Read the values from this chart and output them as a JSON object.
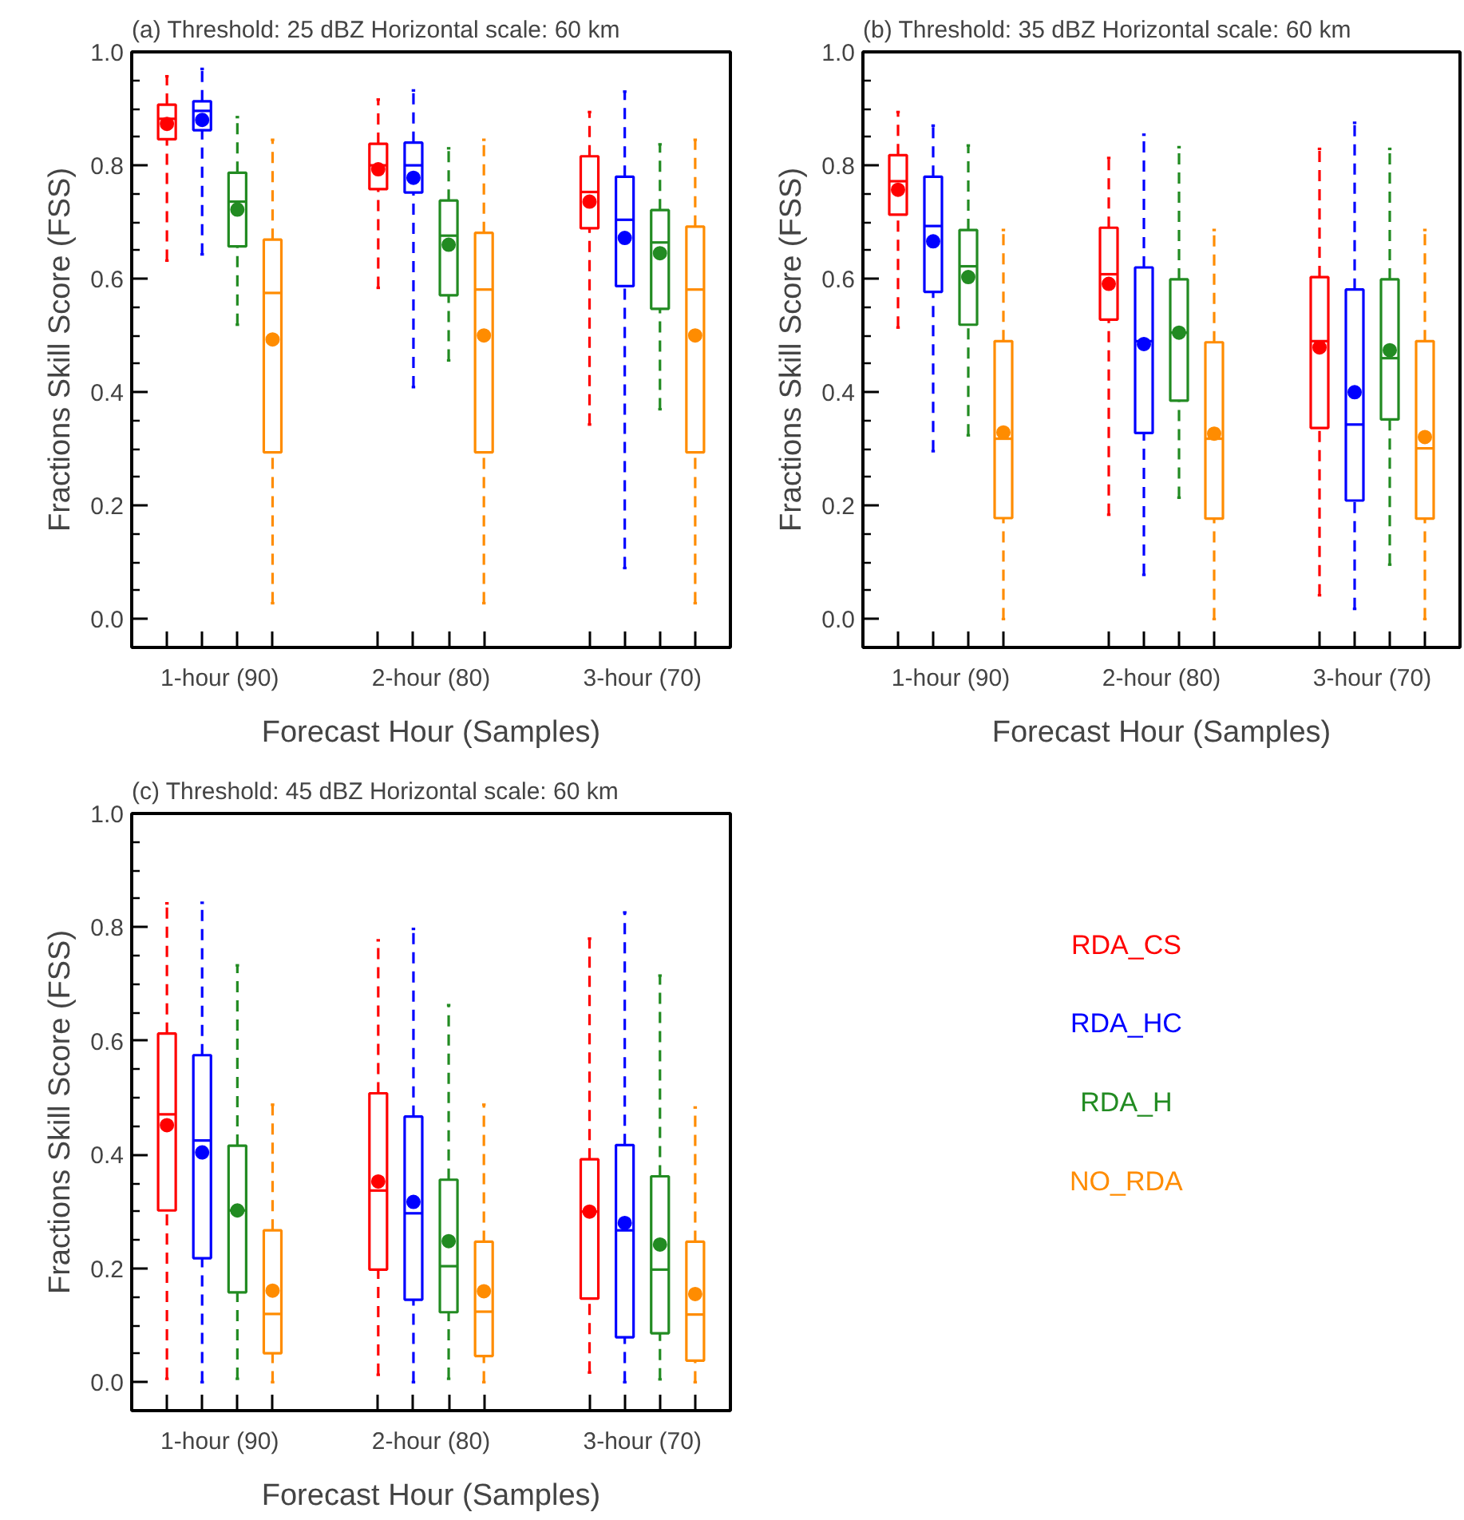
{
  "chart_data": [
    {
      "type": "box",
      "title": "(a) Threshold: 25 dBZ   Horizontal scale: 60 km",
      "xlabel": "Forecast Hour (Samples)",
      "ylabel": "Fractions Skill Score (FSS)",
      "categories": [
        "1-hour (90)",
        "2-hour (80)",
        "3-hour (70)"
      ],
      "ylim": [
        -0.05,
        1.0
      ],
      "yticks": [
        {
          "value": 0,
          "label": "0.0"
        },
        {
          "value": 0.05,
          "label": null
        },
        {
          "value": 0.1,
          "label": null
        },
        {
          "value": 0.15,
          "label": null
        },
        0.2,
        {
          "value": 0.25,
          "label": null
        },
        {
          "value": 0.3,
          "label": null
        },
        {
          "value": 0.35,
          "label": null
        },
        0.4,
        {
          "value": 0.45,
          "label": null
        },
        {
          "value": 0.5,
          "label": null
        },
        {
          "value": 0.55,
          "label": null
        },
        0.6,
        {
          "value": 0.65,
          "label": null
        },
        {
          "value": 0.7,
          "label": null
        },
        {
          "value": 0.75,
          "label": null
        },
        0.8,
        {
          "value": 0.85,
          "label": null
        },
        {
          "value": 0.9,
          "label": null
        },
        {
          "value": 0.95,
          "label": null
        },
        {
          "value": 1.0,
          "label": "1.0"
        }
      ],
      "series": [
        {
          "color": "#ff0000",
          "boxes": [
            {
              "low": 0.632,
              "q1": 0.846,
              "median": 0.882,
              "q3": 0.907,
              "high": 0.957,
              "mean": 0.873
            },
            {
              "low": 0.584,
              "q1": 0.758,
              "median": 0.8,
              "q3": 0.838,
              "high": 0.916,
              "mean": 0.793
            },
            {
              "low": 0.343,
              "q1": 0.689,
              "median": 0.753,
              "q3": 0.816,
              "high": 0.894,
              "mean": 0.736
            }
          ]
        },
        {
          "color": "#0000ff",
          "boxes": [
            {
              "low": 0.643,
              "q1": 0.862,
              "median": 0.896,
              "q3": 0.913,
              "high": 0.97,
              "mean": 0.88
            },
            {
              "low": 0.409,
              "q1": 0.752,
              "median": 0.8,
              "q3": 0.84,
              "high": 0.932,
              "mean": 0.778
            },
            {
              "low": 0.09,
              "q1": 0.587,
              "median": 0.704,
              "q3": 0.78,
              "high": 0.93,
              "mean": 0.672
            }
          ]
        },
        {
          "color": "#228b22",
          "boxes": [
            {
              "low": 0.519,
              "q1": 0.657,
              "median": 0.736,
              "q3": 0.787,
              "high": 0.885,
              "mean": 0.722
            },
            {
              "low": 0.456,
              "q1": 0.571,
              "median": 0.676,
              "q3": 0.738,
              "high": 0.83,
              "mean": 0.66
            },
            {
              "low": 0.37,
              "q1": 0.547,
              "median": 0.664,
              "q3": 0.721,
              "high": 0.837,
              "mean": 0.645
            }
          ]
        },
        {
          "color": "#ff8c00",
          "boxes": [
            {
              "low": 0.028,
              "q1": 0.294,
              "median": 0.575,
              "q3": 0.669,
              "high": 0.845,
              "mean": 0.493
            },
            {
              "low": 0.028,
              "q1": 0.294,
              "median": 0.581,
              "q3": 0.681,
              "high": 0.845,
              "mean": 0.5
            },
            {
              "low": 0.028,
              "q1": 0.294,
              "median": 0.581,
              "q3": 0.692,
              "high": 0.845,
              "mean": 0.5
            }
          ]
        }
      ]
    },
    {
      "type": "box",
      "title": "(b) Threshold: 35 dBZ   Horizontal scale: 60 km",
      "xlabel": "Forecast Hour (Samples)",
      "ylabel": "Fractions Skill Score (FSS)",
      "categories": [
        "1-hour (90)",
        "2-hour (80)",
        "3-hour (70)"
      ],
      "ylim": [
        -0.05,
        1.0
      ],
      "yticks": [
        {
          "value": 0,
          "label": "0.0"
        },
        {
          "value": 0.05,
          "label": null
        },
        {
          "value": 0.1,
          "label": null
        },
        {
          "value": 0.15,
          "label": null
        },
        0.2,
        {
          "value": 0.25,
          "label": null
        },
        {
          "value": 0.3,
          "label": null
        },
        {
          "value": 0.35,
          "label": null
        },
        0.4,
        {
          "value": 0.45,
          "label": null
        },
        {
          "value": 0.5,
          "label": null
        },
        {
          "value": 0.55,
          "label": null
        },
        0.6,
        {
          "value": 0.65,
          "label": null
        },
        {
          "value": 0.7,
          "label": null
        },
        {
          "value": 0.75,
          "label": null
        },
        0.8,
        {
          "value": 0.85,
          "label": null
        },
        {
          "value": 0.9,
          "label": null
        },
        {
          "value": 0.95,
          "label": null
        },
        {
          "value": 1.0,
          "label": "1.0"
        }
      ],
      "series": [
        {
          "color": "#ff0000",
          "boxes": [
            {
              "low": 0.514,
              "q1": 0.713,
              "median": 0.772,
              "q3": 0.818,
              "high": 0.894,
              "mean": 0.757
            },
            {
              "low": 0.184,
              "q1": 0.528,
              "median": 0.608,
              "q3": 0.69,
              "high": 0.813,
              "mean": 0.591
            },
            {
              "low": 0.042,
              "q1": 0.337,
              "median": 0.49,
              "q3": 0.603,
              "high": 0.829,
              "mean": 0.479
            }
          ]
        },
        {
          "color": "#0000ff",
          "boxes": [
            {
              "low": 0.296,
              "q1": 0.577,
              "median": 0.693,
              "q3": 0.78,
              "high": 0.87,
              "mean": 0.666
            },
            {
              "low": 0.078,
              "q1": 0.328,
              "median": 0.49,
              "q3": 0.62,
              "high": 0.854,
              "mean": 0.485
            },
            {
              "low": 0.018,
              "q1": 0.209,
              "median": 0.343,
              "q3": 0.581,
              "high": 0.875,
              "mean": 0.4
            }
          ]
        },
        {
          "color": "#228b22",
          "boxes": [
            {
              "low": 0.324,
              "q1": 0.519,
              "median": 0.622,
              "q3": 0.686,
              "high": 0.835,
              "mean": 0.603
            },
            {
              "low": 0.214,
              "q1": 0.385,
              "median": 0.505,
              "q3": 0.599,
              "high": 0.832,
              "mean": 0.505
            },
            {
              "low": 0.096,
              "q1": 0.352,
              "median": 0.46,
              "q3": 0.599,
              "high": 0.829,
              "mean": 0.474
            }
          ]
        },
        {
          "color": "#ff8c00",
          "boxes": [
            {
              "low": 0.0,
              "q1": 0.178,
              "median": 0.318,
              "q3": 0.49,
              "high": 0.686,
              "mean": 0.329
            },
            {
              "low": 0.0,
              "q1": 0.177,
              "median": 0.318,
              "q3": 0.488,
              "high": 0.686,
              "mean": 0.327
            },
            {
              "low": 0.0,
              "q1": 0.177,
              "median": 0.301,
              "q3": 0.49,
              "high": 0.686,
              "mean": 0.321
            }
          ]
        }
      ]
    },
    {
      "type": "box",
      "title": "(c) Threshold: 45 dBZ   Horizontal scale: 60 km",
      "xlabel": "Forecast Hour (Samples)",
      "ylabel": "Fractions Skill Score (FSS)",
      "categories": [
        "1-hour (90)",
        "2-hour (80)",
        "3-hour (70)"
      ],
      "ylim": [
        -0.05,
        1.0
      ],
      "yticks": [
        {
          "value": 0,
          "label": "0.0"
        },
        {
          "value": 0.05,
          "label": null
        },
        {
          "value": 0.1,
          "label": null
        },
        {
          "value": 0.15,
          "label": null
        },
        0.2,
        {
          "value": 0.25,
          "label": null
        },
        {
          "value": 0.3,
          "label": null
        },
        {
          "value": 0.35,
          "label": null
        },
        0.4,
        {
          "value": 0.45,
          "label": null
        },
        {
          "value": 0.5,
          "label": null
        },
        {
          "value": 0.55,
          "label": null
        },
        0.6,
        {
          "value": 0.65,
          "label": null
        },
        {
          "value": 0.7,
          "label": null
        },
        {
          "value": 0.75,
          "label": null
        },
        0.8,
        {
          "value": 0.85,
          "label": null
        },
        {
          "value": 0.9,
          "label": null
        },
        {
          "value": 0.95,
          "label": null
        },
        {
          "value": 1.0,
          "label": "1.0"
        }
      ],
      "series": [
        {
          "name": "RDA_CS",
          "color": "#ff0000",
          "boxes": [
            {
              "low": 0.006,
              "q1": 0.302,
              "median": 0.471,
              "q3": 0.613,
              "high": 0.842,
              "mean": 0.452
            },
            {
              "low": 0.013,
              "q1": 0.198,
              "median": 0.337,
              "q3": 0.508,
              "high": 0.777,
              "mean": 0.353
            },
            {
              "low": 0.017,
              "q1": 0.147,
              "median": 0.3,
              "q3": 0.392,
              "high": 0.78,
              "mean": 0.3
            }
          ]
        },
        {
          "name": "RDA_HC",
          "color": "#0000ff",
          "boxes": [
            {
              "low": 0.0,
              "q1": 0.218,
              "median": 0.425,
              "q3": 0.575,
              "high": 0.843,
              "mean": 0.404
            },
            {
              "low": 0.0,
              "q1": 0.145,
              "median": 0.297,
              "q3": 0.467,
              "high": 0.797,
              "mean": 0.317
            },
            {
              "low": 0.0,
              "q1": 0.079,
              "median": 0.267,
              "q3": 0.417,
              "high": 0.826,
              "mean": 0.28
            }
          ]
        },
        {
          "name": "RDA_H",
          "color": "#228b22",
          "boxes": [
            {
              "low": 0.006,
              "q1": 0.158,
              "median": 0.302,
              "q3": 0.416,
              "high": 0.733,
              "mean": 0.302
            },
            {
              "low": 0.006,
              "q1": 0.123,
              "median": 0.204,
              "q3": 0.356,
              "high": 0.663,
              "mean": 0.248
            },
            {
              "low": 0.005,
              "q1": 0.086,
              "median": 0.198,
              "q3": 0.362,
              "high": 0.715,
              "mean": 0.242
            }
          ]
        },
        {
          "name": "NO_RDA",
          "color": "#ff8c00",
          "boxes": [
            {
              "low": 0.0,
              "q1": 0.051,
              "median": 0.12,
              "q3": 0.267,
              "high": 0.488,
              "mean": 0.161
            },
            {
              "low": 0.0,
              "q1": 0.046,
              "median": 0.124,
              "q3": 0.247,
              "high": 0.488,
              "mean": 0.16
            },
            {
              "low": 0.0,
              "q1": 0.038,
              "median": 0.119,
              "q3": 0.247,
              "high": 0.483,
              "mean": 0.155
            }
          ]
        }
      ]
    }
  ]
}
